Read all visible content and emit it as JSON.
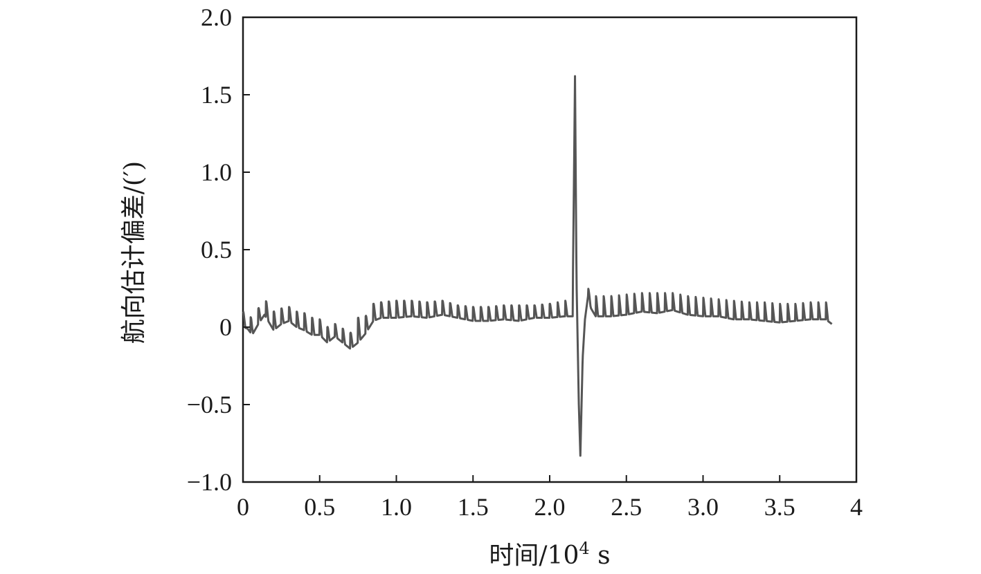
{
  "chart_data": {
    "type": "line",
    "title": "",
    "xlabel": "时间/10",
    "xlabel_sup": "4",
    "xlabel_unit": " s",
    "ylabel": "航向估计偏差/(′)",
    "xlim": [
      0,
      4
    ],
    "ylim": [
      -1.0,
      2.0
    ],
    "x_ticks": [
      0,
      0.5,
      1.0,
      1.5,
      2.0,
      2.5,
      3.0,
      3.5,
      4
    ],
    "x_tick_labels": [
      "0",
      "0.5",
      "1.0",
      "1.5",
      "2.0",
      "2.5",
      "3.0",
      "3.5",
      "4"
    ],
    "y_ticks": [
      -1.0,
      -0.5,
      0,
      0.5,
      1.0,
      1.5,
      2.0
    ],
    "y_tick_labels": [
      "−1.0",
      "−0.5",
      "0",
      "0.5",
      "1.0",
      "1.5",
      "2.0"
    ],
    "grid": false,
    "line_color": "#555555",
    "series": [
      {
        "name": "",
        "sawtooth_period": 0.05,
        "x": [
          0.0,
          0.03,
          0.06,
          0.1,
          0.14,
          0.2,
          0.25,
          0.3,
          0.35,
          0.4,
          0.45,
          0.5,
          0.55,
          0.6,
          0.65,
          0.7,
          0.75,
          0.8,
          0.85,
          0.9,
          1.0,
          1.1,
          1.2,
          1.3,
          1.4,
          1.5,
          1.6,
          1.7,
          1.8,
          1.9,
          2.0,
          2.1,
          2.15,
          2.165,
          2.175,
          2.19,
          2.2,
          2.215,
          2.23,
          2.25,
          2.27,
          2.3,
          2.4,
          2.5,
          2.6,
          2.7,
          2.8,
          2.9,
          3.0,
          3.1,
          3.2,
          3.3,
          3.4,
          3.5,
          3.6,
          3.7,
          3.8,
          3.84
        ],
        "baseline": [
          0.0,
          -0.01,
          -0.05,
          0.02,
          0.08,
          -0.02,
          0.02,
          0.04,
          0.0,
          -0.02,
          -0.05,
          -0.05,
          -0.1,
          -0.06,
          -0.1,
          -0.14,
          -0.1,
          -0.04,
          0.04,
          0.06,
          0.06,
          0.07,
          0.06,
          0.08,
          0.06,
          0.04,
          0.04,
          0.05,
          0.04,
          0.06,
          0.06,
          0.07,
          0.07,
          1.62,
          0.3,
          -0.5,
          -0.83,
          -0.2,
          0.05,
          0.2,
          0.12,
          0.07,
          0.07,
          0.08,
          0.1,
          0.09,
          0.11,
          0.08,
          0.07,
          0.07,
          0.05,
          0.05,
          0.04,
          0.03,
          0.04,
          0.05,
          0.05,
          0.02
        ],
        "spike_top": [
          0.1,
          0.09,
          0.05,
          0.12,
          0.18,
          0.1,
          0.12,
          0.13,
          0.1,
          0.09,
          0.06,
          0.05,
          0.0,
          0.02,
          -0.01,
          -0.04,
          0.06,
          0.07,
          0.15,
          0.16,
          0.17,
          0.17,
          0.16,
          0.17,
          0.14,
          0.13,
          0.13,
          0.14,
          0.14,
          0.14,
          0.15,
          0.17,
          0.17,
          1.62,
          0.3,
          -0.5,
          -0.83,
          -0.2,
          0.27,
          0.25,
          0.22,
          0.2,
          0.2,
          0.21,
          0.22,
          0.22,
          0.22,
          0.2,
          0.19,
          0.18,
          0.17,
          0.16,
          0.16,
          0.15,
          0.15,
          0.16,
          0.16,
          0.15
        ]
      }
    ]
  }
}
